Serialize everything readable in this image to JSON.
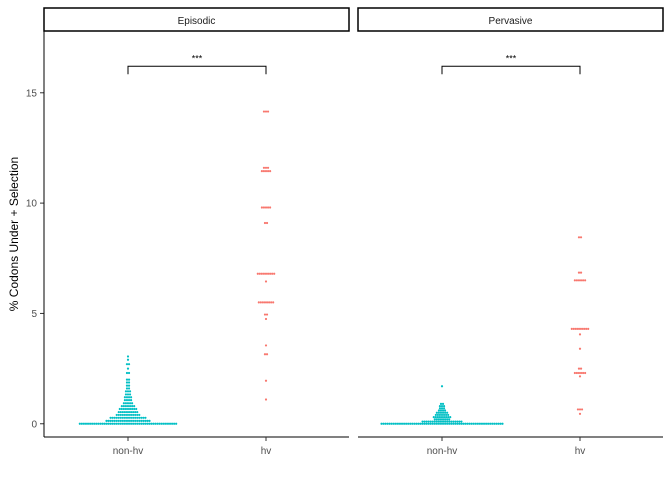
{
  "chart_data": {
    "type": "scatter",
    "ylabel": "% Codons Under + Selection",
    "xlabel": "",
    "categories": [
      "non-hv",
      "hv"
    ],
    "ylim": [
      -0.6,
      17.8
    ],
    "yticks": [
      0,
      5,
      10,
      15
    ],
    "grid": false,
    "legend": "none",
    "colors": {
      "non-hv": "#00BFC4",
      "hv": "#F8766D"
    },
    "panels": [
      {
        "title": "Episodic",
        "annotation": {
          "label": "***",
          "y": 16.2,
          "from": "non-hv",
          "to": "hv"
        },
        "groups": [
          {
            "name": "non-hv",
            "bins": [
              {
                "y": 0.0,
                "n": 48
              },
              {
                "y": 0.13,
                "n": 22
              },
              {
                "y": 0.27,
                "n": 18
              },
              {
                "y": 0.4,
                "n": 12
              },
              {
                "y": 0.53,
                "n": 10
              },
              {
                "y": 0.67,
                "n": 9
              },
              {
                "y": 0.8,
                "n": 7
              },
              {
                "y": 0.93,
                "n": 5
              },
              {
                "y": 1.07,
                "n": 4
              },
              {
                "y": 1.2,
                "n": 4
              },
              {
                "y": 1.33,
                "n": 3
              },
              {
                "y": 1.47,
                "n": 3
              },
              {
                "y": 1.6,
                "n": 2
              },
              {
                "y": 1.73,
                "n": 2
              },
              {
                "y": 1.87,
                "n": 2
              },
              {
                "y": 2.0,
                "n": 2
              },
              {
                "y": 2.3,
                "n": 2
              },
              {
                "y": 2.5,
                "n": 1
              },
              {
                "y": 2.7,
                "n": 2
              },
              {
                "y": 2.9,
                "n": 1
              },
              {
                "y": 3.05,
                "n": 1
              }
            ]
          },
          {
            "name": "hv",
            "bins": [
              {
                "y": 1.1,
                "n": 1
              },
              {
                "y": 1.95,
                "n": 1
              },
              {
                "y": 3.15,
                "n": 2
              },
              {
                "y": 3.55,
                "n": 1
              },
              {
                "y": 4.75,
                "n": 1
              },
              {
                "y": 4.95,
                "n": 2
              },
              {
                "y": 5.5,
                "n": 8
              },
              {
                "y": 6.45,
                "n": 1
              },
              {
                "y": 6.8,
                "n": 9
              },
              {
                "y": 9.1,
                "n": 2
              },
              {
                "y": 9.8,
                "n": 5
              },
              {
                "y": 11.45,
                "n": 5
              },
              {
                "y": 11.6,
                "n": 3
              },
              {
                "y": 14.15,
                "n": 3
              }
            ]
          }
        ]
      },
      {
        "title": "Pervasive",
        "annotation": {
          "label": "***",
          "y": 16.2,
          "from": "non-hv",
          "to": "hv"
        },
        "groups": [
          {
            "name": "non-hv",
            "bins": [
              {
                "y": 0.0,
                "n": 60
              },
              {
                "y": 0.1,
                "n": 20
              },
              {
                "y": 0.2,
                "n": 8
              },
              {
                "y": 0.3,
                "n": 9
              },
              {
                "y": 0.4,
                "n": 7
              },
              {
                "y": 0.5,
                "n": 6
              },
              {
                "y": 0.6,
                "n": 4
              },
              {
                "y": 0.7,
                "n": 3
              },
              {
                "y": 0.8,
                "n": 3
              },
              {
                "y": 0.9,
                "n": 2
              },
              {
                "y": 1.7,
                "n": 1
              }
            ]
          },
          {
            "name": "hv",
            "bins": [
              {
                "y": 0.45,
                "n": 1
              },
              {
                "y": 0.65,
                "n": 3
              },
              {
                "y": 2.15,
                "n": 1
              },
              {
                "y": 2.3,
                "n": 6
              },
              {
                "y": 2.5,
                "n": 2
              },
              {
                "y": 3.4,
                "n": 1
              },
              {
                "y": 4.05,
                "n": 1
              },
              {
                "y": 4.3,
                "n": 9
              },
              {
                "y": 6.5,
                "n": 6
              },
              {
                "y": 6.85,
                "n": 2
              },
              {
                "y": 8.45,
                "n": 2
              }
            ]
          }
        ]
      }
    ]
  }
}
